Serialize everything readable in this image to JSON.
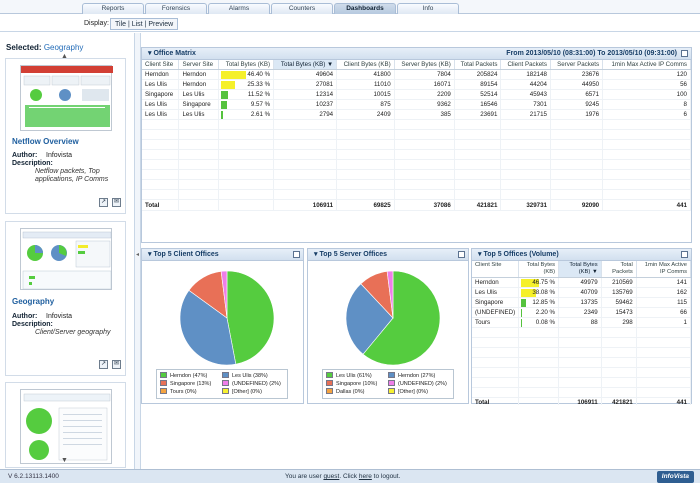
{
  "tabs": [
    "Reports",
    "Forensics",
    "Alarms",
    "Counters",
    "Dashboards",
    "Info"
  ],
  "active_tab": "Dashboards",
  "display": {
    "label": "Display:",
    "options": "Tile | List | Preview"
  },
  "sidebar": {
    "selected_label": "Selected:",
    "selected_value": "Geography",
    "up": "▲",
    "down": "▼",
    "cards": [
      {
        "title": "Netflow Overview",
        "author_label": "Author:",
        "author": "Infovista",
        "description_label": "Description:",
        "description": "Netflow packets, Top applications, IP Comms"
      },
      {
        "title": "Geography",
        "author_label": "Author:",
        "author": "Infovista",
        "description_label": "Description:",
        "description": "Client/Server geography"
      }
    ]
  },
  "office_matrix": {
    "title": "Office Matrix",
    "range": "From 2013/05/10 (08:31:00) To 2013/05/10 (09:31:00)",
    "columns": [
      "Client Site",
      "Server Site",
      "Total Bytes (KB)",
      "Total Bytes (KB) ▼",
      "Client Bytes (KB)",
      "Server Bytes (KB)",
      "Total Packets",
      "Client Packets",
      "Server Packets",
      "1min Max Active IP Comms"
    ],
    "rows": [
      {
        "client": "Herndon",
        "server": "Herndon",
        "pct": "46.40 %",
        "fill": 0.464,
        "yellow": true,
        "total": "49604",
        "client_bytes": "41800",
        "server_bytes": "7804",
        "total_packets": "205824",
        "client_packets": "182148",
        "server_packets": "23676",
        "comms": "120"
      },
      {
        "client": "Les Ulis",
        "server": "Herndon",
        "pct": "25.33 %",
        "fill": 0.2533,
        "yellow": true,
        "total": "27081",
        "client_bytes": "11010",
        "server_bytes": "16071",
        "total_packets": "89154",
        "client_packets": "44204",
        "server_packets": "44950",
        "comms": "56"
      },
      {
        "client": "Singapore",
        "server": "Les Ulis",
        "pct": "11.52 %",
        "fill": 0.1152,
        "yellow": false,
        "total": "12314",
        "client_bytes": "10015",
        "server_bytes": "2209",
        "total_packets": "52514",
        "client_packets": "45943",
        "server_packets": "6571",
        "comms": "100"
      },
      {
        "client": "Les Ulis",
        "server": "Singapore",
        "pct": "9.57 %",
        "fill": 0.0957,
        "yellow": false,
        "total": "10237",
        "client_bytes": "875",
        "server_bytes": "9362",
        "total_packets": "16546",
        "client_packets": "7301",
        "server_packets": "9245",
        "comms": "8"
      },
      {
        "client": "Les Ulis",
        "server": "Les Ulis",
        "pct": "2.61 %",
        "fill": 0.0261,
        "yellow": false,
        "total": "2794",
        "client_bytes": "2409",
        "server_bytes": "385",
        "total_packets": "23691",
        "client_packets": "21715",
        "server_packets": "1976",
        "comms": "6"
      }
    ],
    "total": {
      "label": "Total",
      "total": "106911",
      "client_bytes": "69825",
      "server_bytes": "37086",
      "total_packets": "421821",
      "client_packets": "329731",
      "server_packets": "92090",
      "comms": "441"
    }
  },
  "chart_data": [
    {
      "type": "pie",
      "title": "Top 5 Client Offices",
      "categories": [
        "Herndon (47%)",
        "Les Ulis (38%)",
        "Singapore (13%)",
        "(UNDEFINED) (2%)",
        "Tours (0%)",
        "[Other] (0%)"
      ],
      "values": [
        47,
        38,
        13,
        2,
        0,
        0
      ],
      "colors": [
        "#55cc3f",
        "#5f90c5",
        "#e87057",
        "#ef7ee8",
        "#f4a340",
        "#f6f130"
      ]
    },
    {
      "type": "pie",
      "title": "Top 5 Server Offices",
      "categories": [
        "Les Ulis (61%)",
        "Herndon (27%)",
        "Singapore (10%)",
        "(UNDEFINED) (2%)",
        "Dallas (0%)",
        "[Other] (0%)"
      ],
      "values": [
        61,
        27,
        10,
        2,
        0,
        0
      ],
      "colors": [
        "#55cc3f",
        "#5f90c5",
        "#e87057",
        "#ef7ee8",
        "#f4a340",
        "#f6f130"
      ]
    }
  ],
  "volume_panel": {
    "title": "Top 5 Offices (Volume)",
    "columns": [
      "Client Site",
      "Total Bytes (KB)",
      "Total Bytes (KB) ▼",
      "Total Packets",
      "1min Max Active IP Comms"
    ],
    "rows": [
      {
        "site": "Herndon",
        "pct": "46.75 %",
        "fill": 0.4675,
        "yellow": true,
        "bytes": "49979",
        "packets": "210569",
        "comms": "141"
      },
      {
        "site": "Les Ulis",
        "pct": "38.08 %",
        "fill": 0.3808,
        "yellow": true,
        "bytes": "40709",
        "packets": "135769",
        "comms": "162"
      },
      {
        "site": "Singapore",
        "pct": "12.85 %",
        "fill": 0.1285,
        "yellow": false,
        "bytes": "13735",
        "packets": "59462",
        "comms": "115"
      },
      {
        "site": "(UNDEFINED)",
        "pct": "2.20 %",
        "fill": 0.022,
        "yellow": false,
        "bytes": "2349",
        "packets": "15473",
        "comms": "66"
      },
      {
        "site": "Tours",
        "pct": "0.08 %",
        "fill": 0.0008,
        "yellow": false,
        "bytes": "88",
        "packets": "298",
        "comms": "1"
      }
    ],
    "total": {
      "label": "Total",
      "bytes": "106911",
      "packets": "421821",
      "comms": "441"
    }
  },
  "footer": {
    "version": "V 6.2.13113.1400",
    "user_prefix": "You are user ",
    "user": "guest",
    "user_mid": ". Click ",
    "here": "here",
    "user_suffix": " to logout.",
    "logo": "InfoVista"
  }
}
